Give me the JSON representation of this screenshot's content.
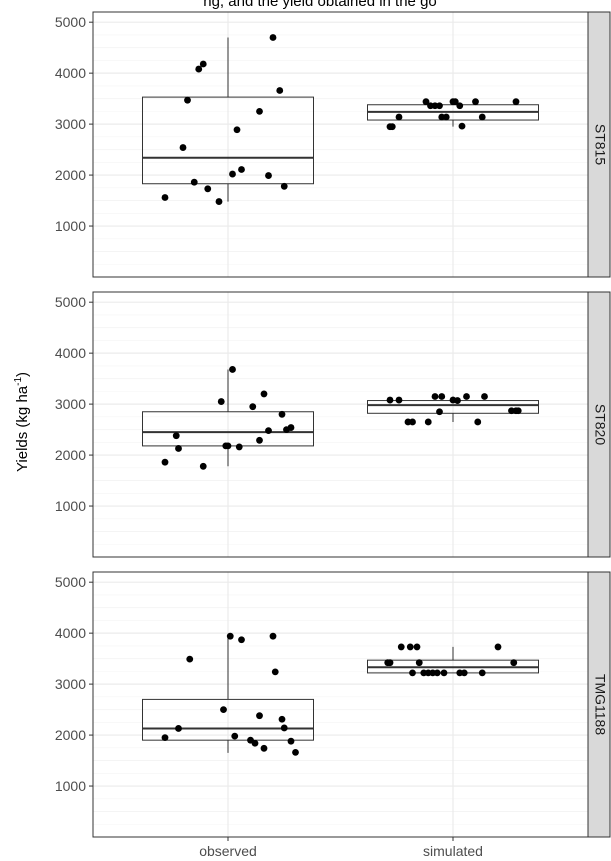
{
  "chart_data": {
    "type": "box",
    "title": "",
    "top_text": "ng, and the yield obtained in the go",
    "ylabel": "Yields (kg ha",
    "ylabel_superscript": "-1",
    "ylabel_suffix": ")",
    "categories": [
      "observed",
      "simulated"
    ],
    "yticks": [
      1000,
      2000,
      3000,
      4000,
      5000
    ],
    "ylim": [
      0,
      5200
    ],
    "grid": true,
    "facets": [
      {
        "label": "ST815",
        "boxes": [
          {
            "category": "observed",
            "q1": 1830,
            "median": 2340,
            "q3": 3530,
            "whisker_low": 1480,
            "whisker_high": 4700
          },
          {
            "category": "simulated",
            "q1": 3080,
            "median": 3240,
            "q3": 3380,
            "whisker_low": 2950,
            "whisker_high": 3450
          }
        ],
        "points": {
          "observed": [
            [
              0.72,
              1560
            ],
            [
              0.8,
              2540
            ],
            [
              0.82,
              3470
            ],
            [
              0.85,
              1860
            ],
            [
              0.87,
              4080
            ],
            [
              0.89,
              4180
            ],
            [
              0.91,
              1730
            ],
            [
              0.96,
              1480
            ],
            [
              1.02,
              2020
            ],
            [
              1.04,
              2890
            ],
            [
              1.06,
              2110
            ],
            [
              1.14,
              3250
            ],
            [
              1.18,
              1990
            ],
            [
              1.2,
              4700
            ],
            [
              1.23,
              3660
            ],
            [
              1.25,
              1780
            ]
          ],
          "simulated": [
            [
              1.72,
              2950
            ],
            [
              1.73,
              2950
            ],
            [
              1.76,
              3140
            ],
            [
              1.88,
              3440
            ],
            [
              1.9,
              3360
            ],
            [
              1.92,
              3360
            ],
            [
              1.94,
              3360
            ],
            [
              1.95,
              3140
            ],
            [
              1.97,
              3140
            ],
            [
              2.0,
              3440
            ],
            [
              2.01,
              3440
            ],
            [
              2.03,
              3360
            ],
            [
              2.04,
              2960
            ],
            [
              2.1,
              3440
            ],
            [
              2.13,
              3140
            ],
            [
              2.28,
              3440
            ]
          ]
        }
      },
      {
        "label": "ST820",
        "boxes": [
          {
            "category": "observed",
            "q1": 2180,
            "median": 2450,
            "q3": 2850,
            "whisker_low": 1780,
            "whisker_high": 3680
          },
          {
            "category": "simulated",
            "q1": 2820,
            "median": 2980,
            "q3": 3070,
            "whisker_low": 2650,
            "whisker_high": 3150
          }
        ],
        "points": {
          "observed": [
            [
              0.72,
              1860
            ],
            [
              0.77,
              2380
            ],
            [
              0.78,
              2130
            ],
            [
              0.89,
              1780
            ],
            [
              0.97,
              3050
            ],
            [
              0.99,
              2180
            ],
            [
              1.0,
              2180
            ],
            [
              1.02,
              3680
            ],
            [
              1.05,
              2160
            ],
            [
              1.11,
              2950
            ],
            [
              1.14,
              2290
            ],
            [
              1.16,
              3200
            ],
            [
              1.18,
              2480
            ],
            [
              1.24,
              2800
            ],
            [
              1.26,
              2500
            ],
            [
              1.28,
              2540
            ]
          ],
          "simulated": [
            [
              1.72,
              3080
            ],
            [
              1.76,
              3080
            ],
            [
              1.8,
              2650
            ],
            [
              1.82,
              2650
            ],
            [
              1.89,
              2650
            ],
            [
              1.92,
              3150
            ],
            [
              1.94,
              2850
            ],
            [
              1.95,
              3150
            ],
            [
              2.0,
              3080
            ],
            [
              2.02,
              3070
            ],
            [
              2.06,
              3150
            ],
            [
              2.11,
              2650
            ],
            [
              2.14,
              3150
            ],
            [
              2.26,
              2870
            ],
            [
              2.28,
              2870
            ],
            [
              2.29,
              2870
            ]
          ]
        }
      },
      {
        "label": "TMG1188",
        "boxes": [
          {
            "category": "observed",
            "q1": 1900,
            "median": 2130,
            "q3": 2700,
            "whisker_low": 1650,
            "whisker_high": 3940
          },
          {
            "category": "simulated",
            "q1": 3220,
            "median": 3330,
            "q3": 3470,
            "whisker_low": 3220,
            "whisker_high": 3730
          }
        ],
        "points": {
          "observed": [
            [
              0.72,
              1950
            ],
            [
              0.78,
              2130
            ],
            [
              0.83,
              3490
            ],
            [
              0.98,
              2500
            ],
            [
              1.01,
              3940
            ],
            [
              1.03,
              1980
            ],
            [
              1.06,
              3870
            ],
            [
              1.1,
              1900
            ],
            [
              1.12,
              1840
            ],
            [
              1.14,
              2380
            ],
            [
              1.16,
              1740
            ],
            [
              1.2,
              3940
            ],
            [
              1.21,
              3240
            ],
            [
              1.24,
              2310
            ],
            [
              1.25,
              2140
            ],
            [
              1.28,
              1880
            ],
            [
              1.3,
              1660
            ]
          ],
          "simulated": [
            [
              1.71,
              3420
            ],
            [
              1.72,
              3420
            ],
            [
              1.77,
              3730
            ],
            [
              1.81,
              3730
            ],
            [
              1.82,
              3220
            ],
            [
              1.84,
              3730
            ],
            [
              1.85,
              3420
            ],
            [
              1.87,
              3220
            ],
            [
              1.89,
              3220
            ],
            [
              1.91,
              3220
            ],
            [
              1.93,
              3220
            ],
            [
              1.96,
              3220
            ],
            [
              2.03,
              3220
            ],
            [
              2.05,
              3220
            ],
            [
              2.13,
              3220
            ],
            [
              2.2,
              3730
            ],
            [
              2.27,
              3420
            ]
          ]
        }
      }
    ],
    "colors": {
      "points": "#000000",
      "box_stroke": "#333333",
      "grid_major": "#ebebeb",
      "grid_minor": "#f4f4f4",
      "panel_border": "#333333",
      "strip_fill": "#d9d9d9"
    }
  }
}
